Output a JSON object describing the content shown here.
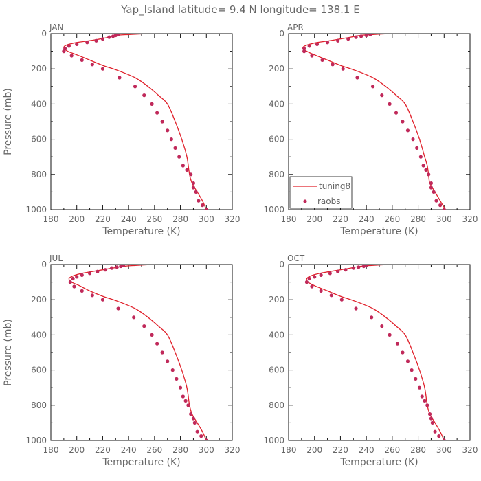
{
  "figure": {
    "title": "Yap_Island   latitude=  9.4  N longitude=  138.1  E"
  },
  "colors": {
    "model_line": "#e0202a",
    "obs_marker": "#c0295a",
    "axis": "#111111",
    "text": "#666666"
  },
  "chart_data": [
    {
      "type": "line",
      "panel_label": "JAN",
      "xlabel": "Temperature (K)",
      "ylabel": "Pressure (mb)",
      "xlim": [
        180,
        320
      ],
      "ylim": [
        1000,
        0
      ],
      "xticks": [
        180,
        200,
        220,
        240,
        260,
        280,
        300,
        320
      ],
      "yticks": [
        0,
        200,
        400,
        600,
        800,
        1000
      ],
      "series": [
        {
          "name": "tuning8",
          "kind": "line",
          "x": [
            255,
            240,
            230,
            225,
            218,
            210,
            200,
            192,
            190,
            193,
            200,
            210,
            220,
            232,
            245,
            255,
            263,
            270,
            276,
            281,
            285,
            287,
            289,
            293,
            297,
            300
          ],
          "y": [
            0,
            5,
            10,
            20,
            30,
            40,
            50,
            65,
            80,
            100,
            120,
            150,
            180,
            210,
            250,
            300,
            350,
            400,
            500,
            600,
            700,
            800,
            850,
            900,
            950,
            1000
          ]
        },
        {
          "name": "raobs",
          "kind": "scatter",
          "x": [
            232,
            230,
            228,
            225,
            220,
            215,
            208,
            200,
            194,
            191,
            190,
            196,
            204,
            212,
            220,
            233,
            245,
            252,
            258,
            262,
            266,
            270,
            273,
            276,
            279,
            282,
            285,
            288,
            290,
            290,
            292,
            294,
            297,
            300
          ],
          "y": [
            5,
            10,
            15,
            20,
            30,
            40,
            50,
            60,
            70,
            85,
            100,
            125,
            150,
            175,
            200,
            250,
            300,
            350,
            400,
            450,
            500,
            550,
            600,
            650,
            700,
            750,
            775,
            800,
            850,
            875,
            900,
            950,
            975,
            1000
          ]
        }
      ]
    },
    {
      "type": "line",
      "panel_label": "APR",
      "xlabel": "Temperature (K)",
      "ylabel": "",
      "xlim": [
        180,
        320
      ],
      "ylim": [
        1000,
        0
      ],
      "xticks": [
        180,
        200,
        220,
        240,
        260,
        280,
        300,
        320
      ],
      "yticks": [
        0,
        200,
        400,
        600,
        800,
        1000
      ],
      "legend": {
        "position": "bottom-left"
      },
      "series": [
        {
          "name": "tuning8",
          "kind": "line",
          "x": [
            258,
            245,
            235,
            228,
            220,
            212,
            202,
            194,
            191,
            194,
            200,
            210,
            220,
            232,
            245,
            255,
            263,
            270,
            276,
            281,
            285,
            287,
            288,
            289,
            293,
            297,
            301
          ],
          "y": [
            0,
            5,
            10,
            20,
            30,
            40,
            50,
            65,
            80,
            100,
            120,
            150,
            180,
            210,
            250,
            300,
            350,
            400,
            500,
            600,
            700,
            750,
            800,
            850,
            900,
            950,
            1000
          ]
        },
        {
          "name": "raobs",
          "kind": "scatter",
          "x": [
            243,
            240,
            236,
            232,
            226,
            218,
            210,
            202,
            196,
            192,
            192,
            198,
            206,
            214,
            222,
            233,
            245,
            252,
            258,
            263,
            268,
            272,
            276,
            279,
            282,
            284,
            286,
            288,
            290,
            290,
            292,
            294,
            297,
            300
          ],
          "y": [
            5,
            10,
            15,
            20,
            30,
            40,
            50,
            60,
            70,
            85,
            100,
            125,
            150,
            175,
            200,
            250,
            300,
            350,
            400,
            450,
            500,
            550,
            600,
            650,
            700,
            750,
            775,
            800,
            850,
            875,
            900,
            950,
            975,
            1000
          ]
        }
      ]
    },
    {
      "type": "line",
      "panel_label": "JUL",
      "xlabel": "Temperature (K)",
      "ylabel": "Pressure (mb)",
      "xlim": [
        180,
        320
      ],
      "ylim": [
        1000,
        0
      ],
      "xticks": [
        180,
        200,
        220,
        240,
        260,
        280,
        300,
        320
      ],
      "yticks": [
        0,
        200,
        400,
        600,
        800,
        1000
      ],
      "series": [
        {
          "name": "tuning8",
          "kind": "line",
          "x": [
            258,
            245,
            236,
            228,
            220,
            212,
            204,
            197,
            194,
            196,
            202,
            210,
            220,
            232,
            245,
            255,
            263,
            270,
            276,
            281,
            285,
            287,
            289,
            293,
            297,
            300
          ],
          "y": [
            0,
            5,
            10,
            20,
            30,
            40,
            50,
            65,
            80,
            100,
            120,
            150,
            180,
            210,
            250,
            300,
            350,
            400,
            500,
            600,
            700,
            800,
            850,
            900,
            950,
            1000
          ]
        },
        {
          "name": "raobs",
          "kind": "scatter",
          "x": [
            236,
            234,
            231,
            227,
            222,
            216,
            210,
            204,
            200,
            197,
            195,
            198,
            204,
            212,
            220,
            232,
            244,
            252,
            258,
            262,
            266,
            270,
            274,
            277,
            280,
            282,
            284,
            286,
            288,
            290,
            291,
            293,
            296,
            300
          ],
          "y": [
            5,
            10,
            15,
            20,
            30,
            40,
            50,
            60,
            70,
            80,
            100,
            125,
            150,
            175,
            200,
            250,
            300,
            350,
            400,
            450,
            500,
            550,
            600,
            650,
            700,
            750,
            775,
            800,
            850,
            875,
            900,
            950,
            975,
            1000
          ]
        }
      ]
    },
    {
      "type": "line",
      "panel_label": "OCT",
      "xlabel": "Temperature (K)",
      "ylabel": "",
      "xlim": [
        180,
        320
      ],
      "ylim": [
        1000,
        0
      ],
      "xticks": [
        180,
        200,
        220,
        240,
        260,
        280,
        300,
        320
      ],
      "yticks": [
        0,
        200,
        400,
        600,
        800,
        1000
      ],
      "series": [
        {
          "name": "tuning8",
          "kind": "line",
          "x": [
            257,
            244,
            235,
            228,
            220,
            212,
            204,
            197,
            194,
            195,
            200,
            210,
            220,
            232,
            245,
            255,
            263,
            270,
            276,
            281,
            285,
            287,
            289,
            293,
            297,
            300
          ],
          "y": [
            0,
            5,
            10,
            20,
            30,
            40,
            50,
            65,
            80,
            100,
            120,
            150,
            180,
            210,
            250,
            300,
            350,
            400,
            500,
            600,
            700,
            800,
            850,
            900,
            950,
            1000
          ]
        },
        {
          "name": "raobs",
          "kind": "scatter",
          "x": [
            240,
            238,
            234,
            230,
            224,
            218,
            212,
            205,
            200,
            196,
            194,
            198,
            205,
            213,
            221,
            232,
            244,
            252,
            258,
            264,
            268,
            272,
            275,
            278,
            281,
            283,
            285,
            287,
            289,
            290,
            291,
            293,
            296,
            300
          ],
          "y": [
            5,
            10,
            15,
            20,
            30,
            40,
            50,
            60,
            70,
            80,
            100,
            125,
            150,
            175,
            200,
            250,
            300,
            350,
            400,
            450,
            500,
            550,
            600,
            650,
            700,
            750,
            775,
            800,
            850,
            875,
            900,
            950,
            975,
            1000
          ]
        }
      ]
    }
  ]
}
